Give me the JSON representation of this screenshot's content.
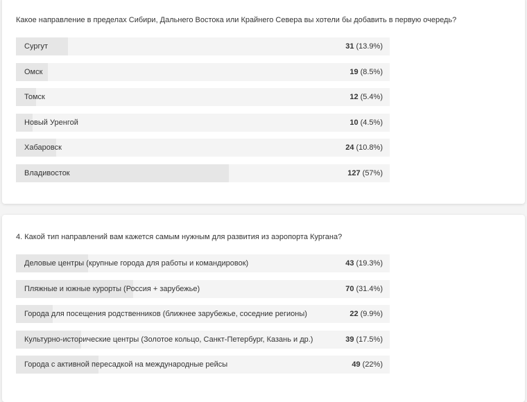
{
  "polls": [
    {
      "question": "Какое направление в пределах Сибири, Дальнего Востока или Крайнего Севера вы хотели бы добавить в первую очередь?",
      "options": [
        {
          "label": "Сургут",
          "count": 31,
          "percent": 13.9,
          "percent_label": "(13.9%)"
        },
        {
          "label": "Омск",
          "count": 19,
          "percent": 8.5,
          "percent_label": "(8.5%)"
        },
        {
          "label": "Томск",
          "count": 12,
          "percent": 5.4,
          "percent_label": "(5.4%)"
        },
        {
          "label": "Новый Уренгой",
          "count": 10,
          "percent": 4.5,
          "percent_label": "(4.5%)"
        },
        {
          "label": "Хабаровск",
          "count": 24,
          "percent": 10.8,
          "percent_label": "(10.8%)"
        },
        {
          "label": "Владивосток",
          "count": 127,
          "percent": 57,
          "percent_label": "(57%)"
        }
      ]
    },
    {
      "question": "4. Какой тип направлений вам кажется самым нужным для развития из аэропорта Кургана?",
      "options": [
        {
          "label": "Деловые центры (крупные города для работы и командировок)",
          "count": 43,
          "percent": 19.3,
          "percent_label": "(19.3%)"
        },
        {
          "label": "Пляжные и южные курорты (Россия + зарубежье)",
          "count": 70,
          "percent": 31.4,
          "percent_label": "(31.4%)"
        },
        {
          "label": "Города для посещения родственников (ближнее зарубежье, соседние регионы)",
          "count": 22,
          "percent": 9.9,
          "percent_label": "(9.9%)"
        },
        {
          "label": "Культурно-исторические центры (Золотое кольцо, Санкт-Петербург, Казань и др.)",
          "count": 39,
          "percent": 17.5,
          "percent_label": "(17.5%)"
        },
        {
          "label": "Города с активной пересадкой на международные рейсы",
          "count": 49,
          "percent": 22,
          "percent_label": "(22%)"
        }
      ]
    }
  ]
}
